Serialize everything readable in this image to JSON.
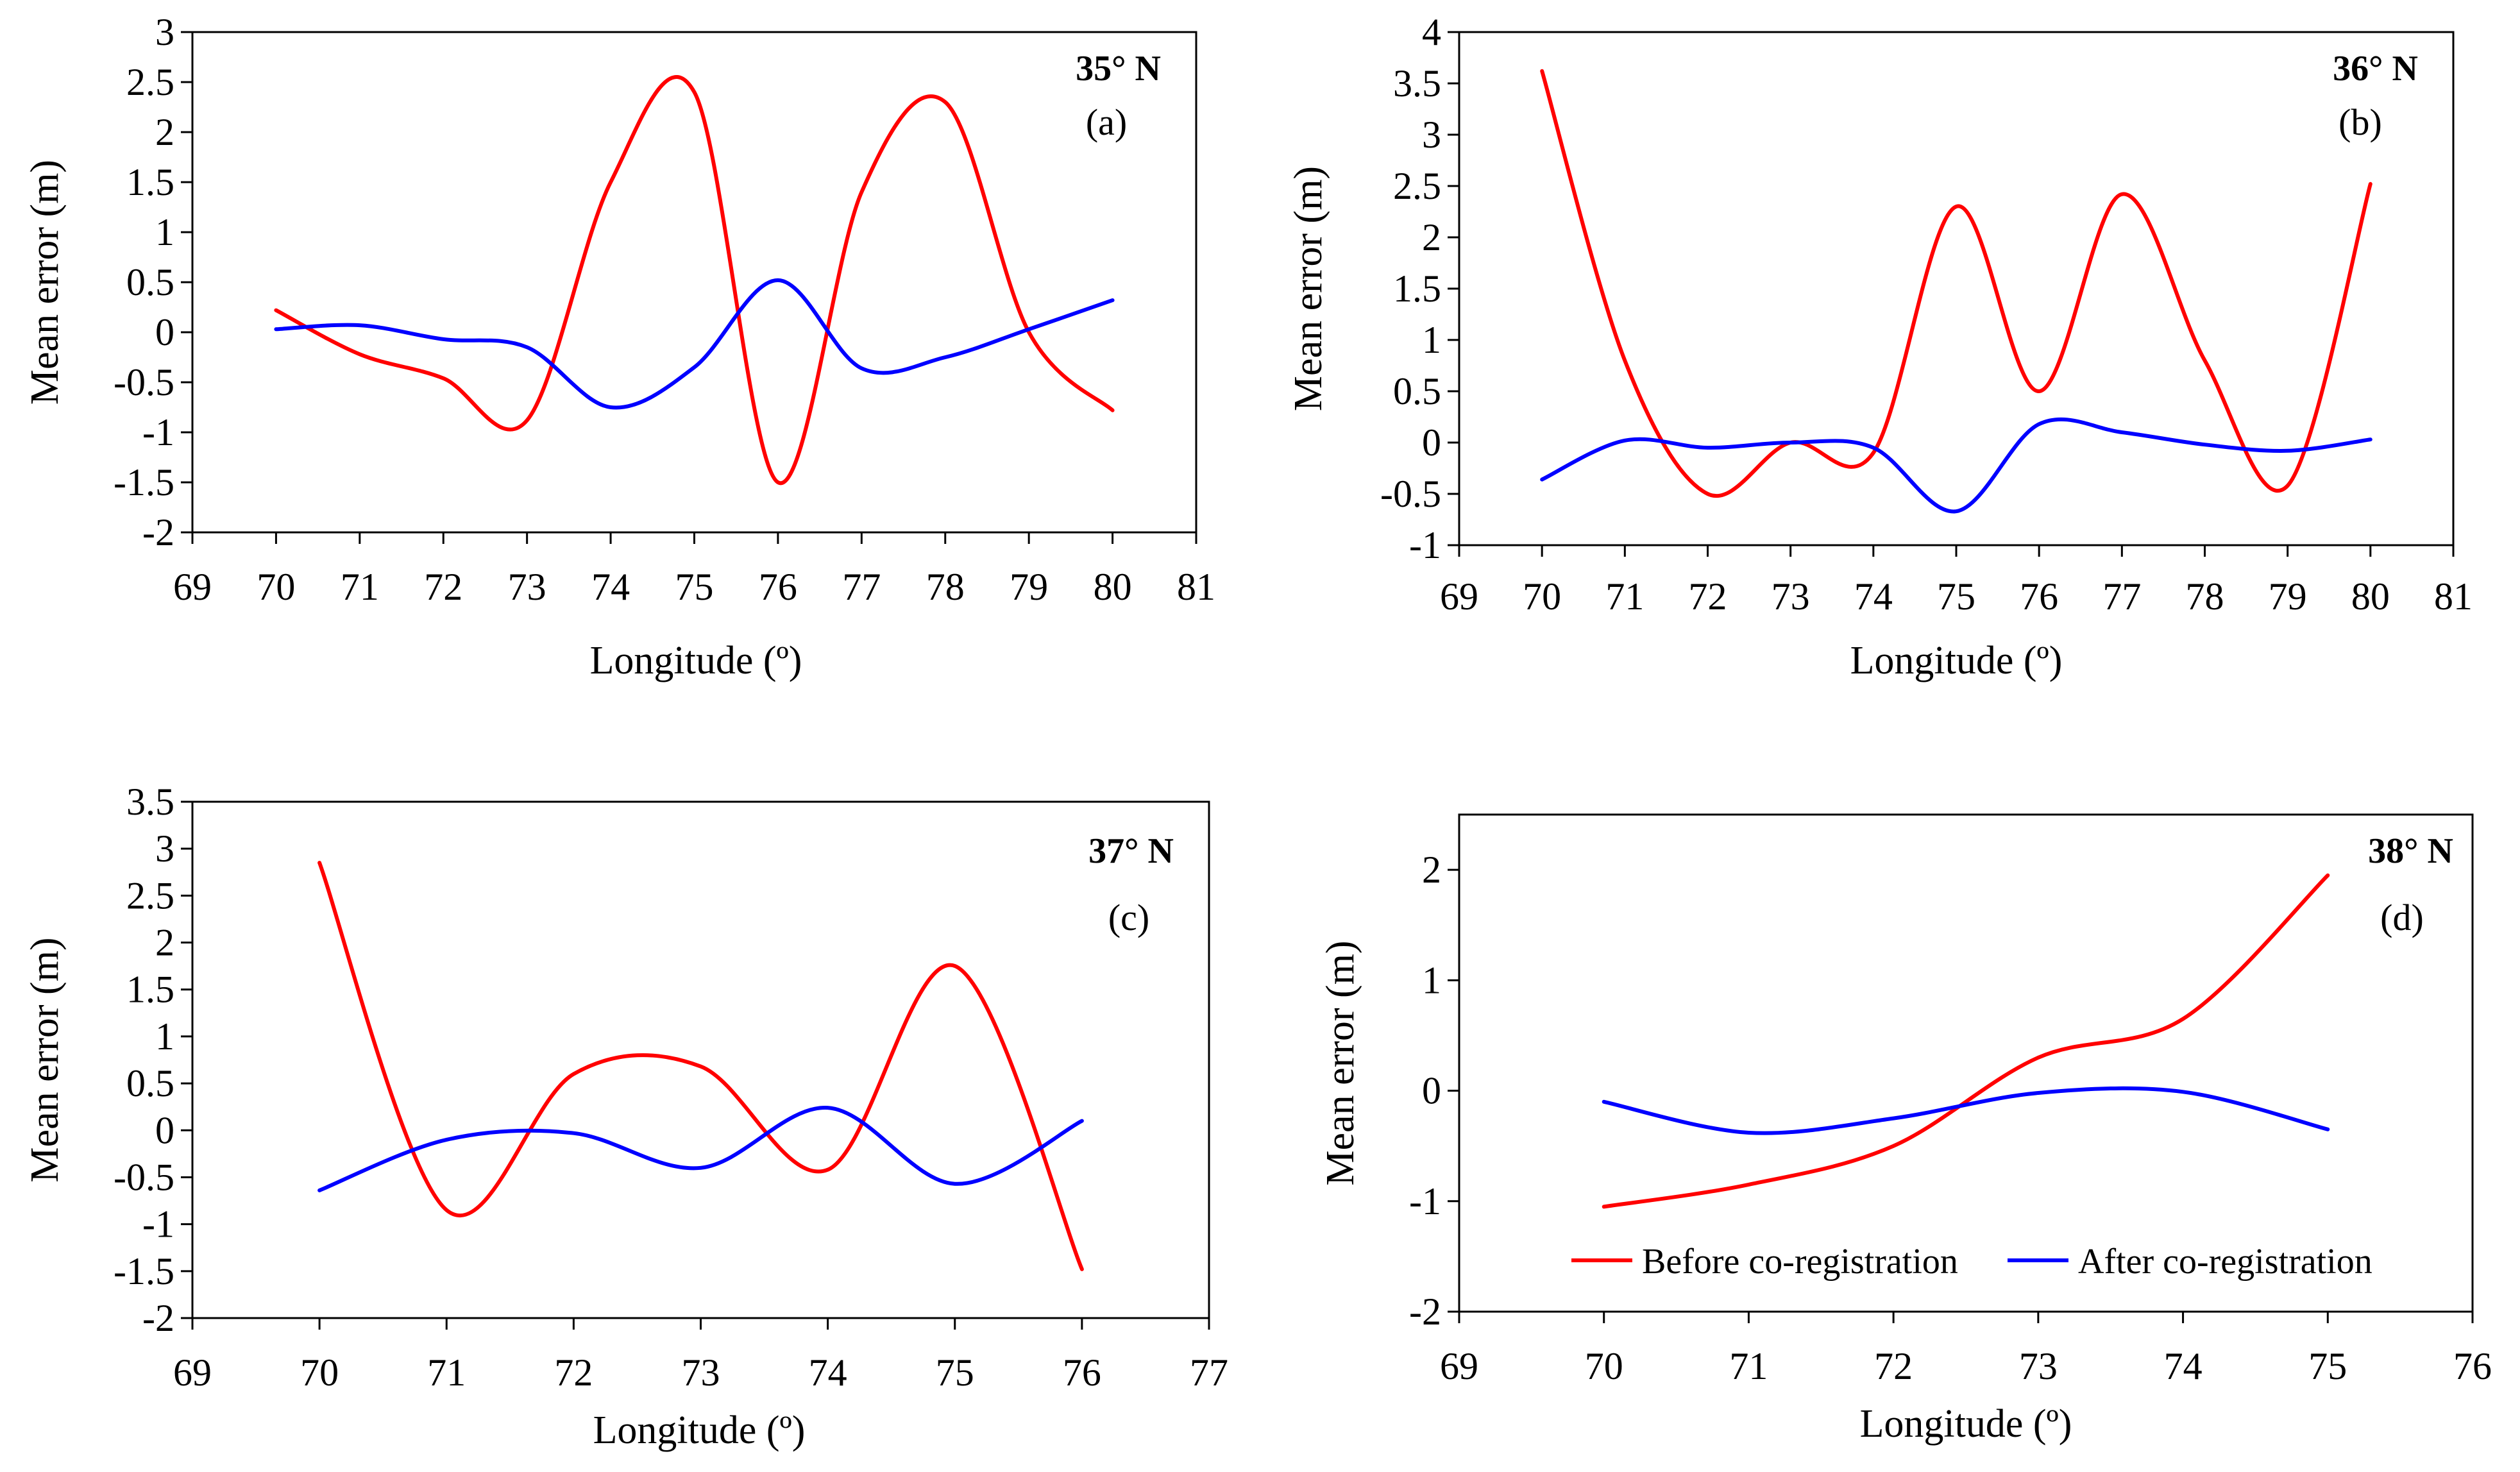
{
  "colors": {
    "before": "#ff0000",
    "after": "#0000ff",
    "axis": "#000000"
  },
  "legend": {
    "items": [
      {
        "label": "Before co-registration",
        "color": "#ff0000"
      },
      {
        "label": "After co-registration",
        "color": "#0000ff"
      }
    ],
    "placement": "bottom of panel (d)"
  },
  "chart_data": [
    {
      "type": "line",
      "panel": "(a)",
      "title": "35° N",
      "xlabel": "Longitude (º)",
      "ylabel": "Mean error (m)",
      "xlim": [
        69,
        81
      ],
      "ylim": [
        -2,
        3
      ],
      "xticks": [
        "69",
        "70",
        "71",
        "72",
        "73",
        "74",
        "75",
        "76",
        "77",
        "78",
        "79",
        "80",
        "81"
      ],
      "yticks": [
        "3",
        "2.5",
        "2",
        "1.5",
        "1",
        "0.5",
        "0",
        "-0.5",
        "-1",
        "-1.5",
        "-2"
      ],
      "grid": false,
      "x": [
        70,
        71,
        72,
        73,
        74,
        75,
        76,
        77,
        78,
        79,
        80
      ],
      "series": [
        {
          "name": "Before co-registration",
          "values": [
            0.22,
            -0.22,
            -0.46,
            -0.88,
            1.5,
            2.4,
            -1.5,
            1.4,
            2.3,
            0.0,
            -0.78
          ]
        },
        {
          "name": "After co-registration",
          "values": [
            0.03,
            0.07,
            -0.07,
            -0.15,
            -0.75,
            -0.35,
            0.52,
            -0.36,
            -0.25,
            0.03,
            0.32
          ]
        }
      ]
    },
    {
      "type": "line",
      "panel": "(b)",
      "title": "36° N",
      "xlabel": "Longitude (º)",
      "ylabel": "Mean error (m)",
      "xlim": [
        69,
        81
      ],
      "ylim": [
        -1,
        4
      ],
      "xticks": [
        "69",
        "70",
        "71",
        "72",
        "73",
        "74",
        "75",
        "76",
        "77",
        "78",
        "79",
        "80",
        "81"
      ],
      "yticks": [
        "4",
        "3.5",
        "3",
        "2.5",
        "2",
        "1.5",
        "1",
        "0.5",
        "0",
        "-0.5",
        "-1"
      ],
      "grid": false,
      "x": [
        70,
        71,
        72,
        73,
        74,
        75,
        76,
        77,
        78,
        79,
        80
      ],
      "series": [
        {
          "name": "Before co-registration",
          "values": [
            3.62,
            0.8,
            -0.5,
            0.0,
            -0.1,
            2.3,
            0.5,
            2.42,
            0.8,
            -0.42,
            2.52
          ]
        },
        {
          "name": "After co-registration",
          "values": [
            -0.36,
            0.02,
            -0.05,
            0.0,
            -0.05,
            -0.67,
            0.18,
            0.1,
            -0.02,
            -0.08,
            0.03
          ]
        }
      ]
    },
    {
      "type": "line",
      "panel": "(c)",
      "title": "37° N",
      "xlabel": "Longitude (º)",
      "ylabel": "Mean error (m)",
      "xlim": [
        69,
        77
      ],
      "ylim": [
        -2,
        3.5
      ],
      "xticks": [
        "69",
        "70",
        "71",
        "72",
        "73",
        "74",
        "75",
        "76",
        "77"
      ],
      "yticks": [
        "3.5",
        "3",
        "2.5",
        "2",
        "1.5",
        "1",
        "0.5",
        "0",
        "-0.5",
        "-1",
        "-1.5",
        "-2"
      ],
      "grid": false,
      "x": [
        70,
        71,
        72,
        73,
        74,
        75,
        76
      ],
      "series": [
        {
          "name": "Before co-registration",
          "values": [
            2.85,
            -0.85,
            0.6,
            0.68,
            -0.42,
            1.75,
            -1.48
          ]
        },
        {
          "name": "After co-registration",
          "values": [
            -0.64,
            -0.1,
            -0.03,
            -0.4,
            0.24,
            -0.57,
            0.1
          ]
        }
      ]
    },
    {
      "type": "line",
      "panel": "(d)",
      "title": "38° N",
      "xlabel": "Longitude (º)",
      "ylabel": "Mean error (m)",
      "xlim": [
        69,
        76
      ],
      "ylim": [
        -2,
        2.5
      ],
      "xticks": [
        "69",
        "70",
        "71",
        "72",
        "73",
        "74",
        "75",
        "76"
      ],
      "yticks": [
        "2",
        "1",
        "0",
        "-1",
        "-2"
      ],
      "grid": false,
      "x": [
        70,
        71,
        72,
        73,
        74,
        75
      ],
      "series": [
        {
          "name": "Before co-registration",
          "values": [
            -1.05,
            -0.85,
            -0.5,
            0.3,
            0.65,
            1.95
          ]
        },
        {
          "name": "After co-registration",
          "values": [
            -0.1,
            -0.38,
            -0.25,
            -0.02,
            -0.01,
            -0.35
          ]
        }
      ]
    }
  ]
}
